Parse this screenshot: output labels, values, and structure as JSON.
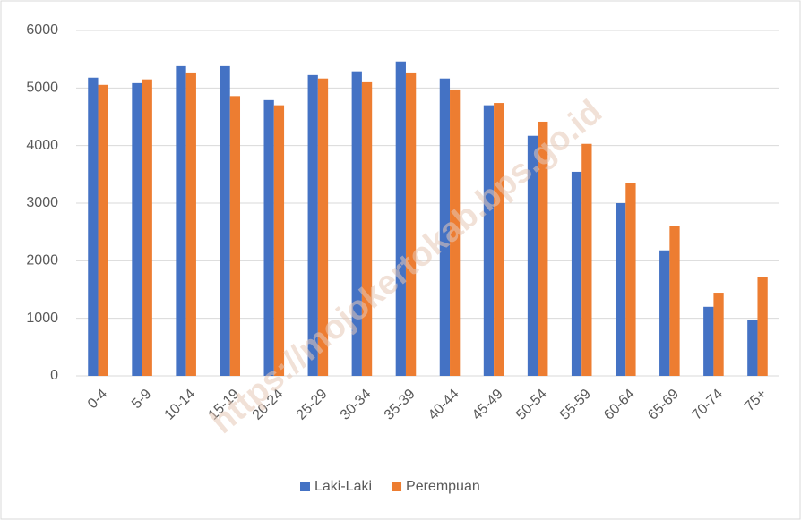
{
  "chart_data": {
    "type": "bar",
    "categories": [
      "0-4",
      "5-9",
      "10-14",
      "15-19",
      "20-24",
      "25-29",
      "30-34",
      "35-39",
      "40-44",
      "45-49",
      "50-54",
      "55-59",
      "60-64",
      "65-69",
      "70-74",
      "75+"
    ],
    "series": [
      {
        "name": "Laki-Laki",
        "color": "#4472c4",
        "values": [
          5180,
          5085,
          5380,
          5380,
          4790,
          5225,
          5290,
          5460,
          5165,
          4700,
          4170,
          3545,
          3000,
          2180,
          1200,
          965
        ]
      },
      {
        "name": "Perempuan",
        "color": "#ed7d31",
        "values": [
          5055,
          5150,
          5255,
          4860,
          4700,
          5165,
          5100,
          5255,
          4975,
          4740,
          4415,
          4030,
          3345,
          2610,
          1445,
          1710
        ]
      }
    ],
    "ylim": [
      0,
      6000
    ],
    "yticks": [
      0,
      1000,
      2000,
      3000,
      4000,
      5000,
      6000
    ],
    "grid": true,
    "legend": "bottom",
    "watermark": "https://mojokertokab.bps.go.id"
  }
}
